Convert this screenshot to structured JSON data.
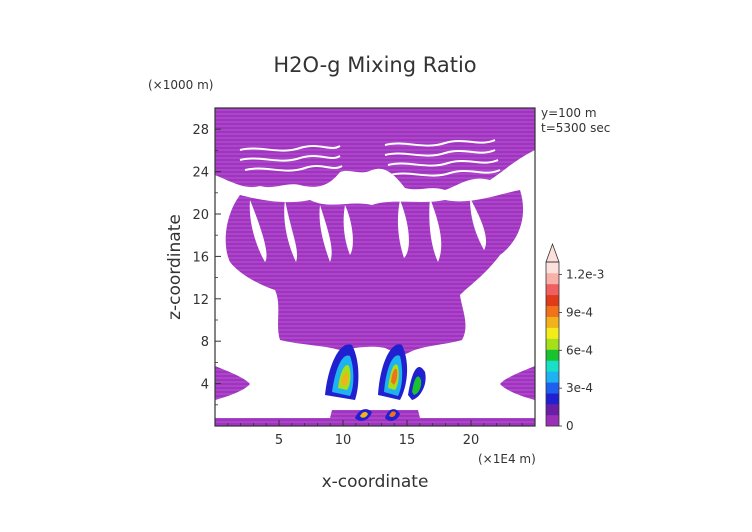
{
  "chart_data": {
    "type": "heatmap",
    "title": "H2O-g Mixing Ratio",
    "xlabel": "x-coordinate",
    "ylabel": "z-coordinate",
    "x_units": "(×1E4 m)",
    "y_units": "(×1000 m)",
    "annotations": [
      "y=100 m",
      "t=5300 sec"
    ],
    "x_ticks": [
      5,
      10,
      15,
      20
    ],
    "y_ticks": [
      4,
      8,
      12,
      16,
      20,
      24,
      28
    ],
    "xlim": [
      0,
      25
    ],
    "ylim": [
      0,
      30
    ],
    "colorbar": {
      "labels": [
        "0",
        "3e-4",
        "6e-4",
        "9e-4",
        "1.2e-3"
      ],
      "min": 0,
      "max": 0.0013,
      "colors": [
        "#9c2fb8",
        "#6a1ea8",
        "#2020d0",
        "#1f5ff0",
        "#1fb2f0",
        "#18e0c8",
        "#19c22f",
        "#a6e01b",
        "#f2ec1b",
        "#f2b21b",
        "#f2721b",
        "#e23b1b",
        "#f06060",
        "#f8b0a8",
        "#fce0dc"
      ]
    }
  }
}
